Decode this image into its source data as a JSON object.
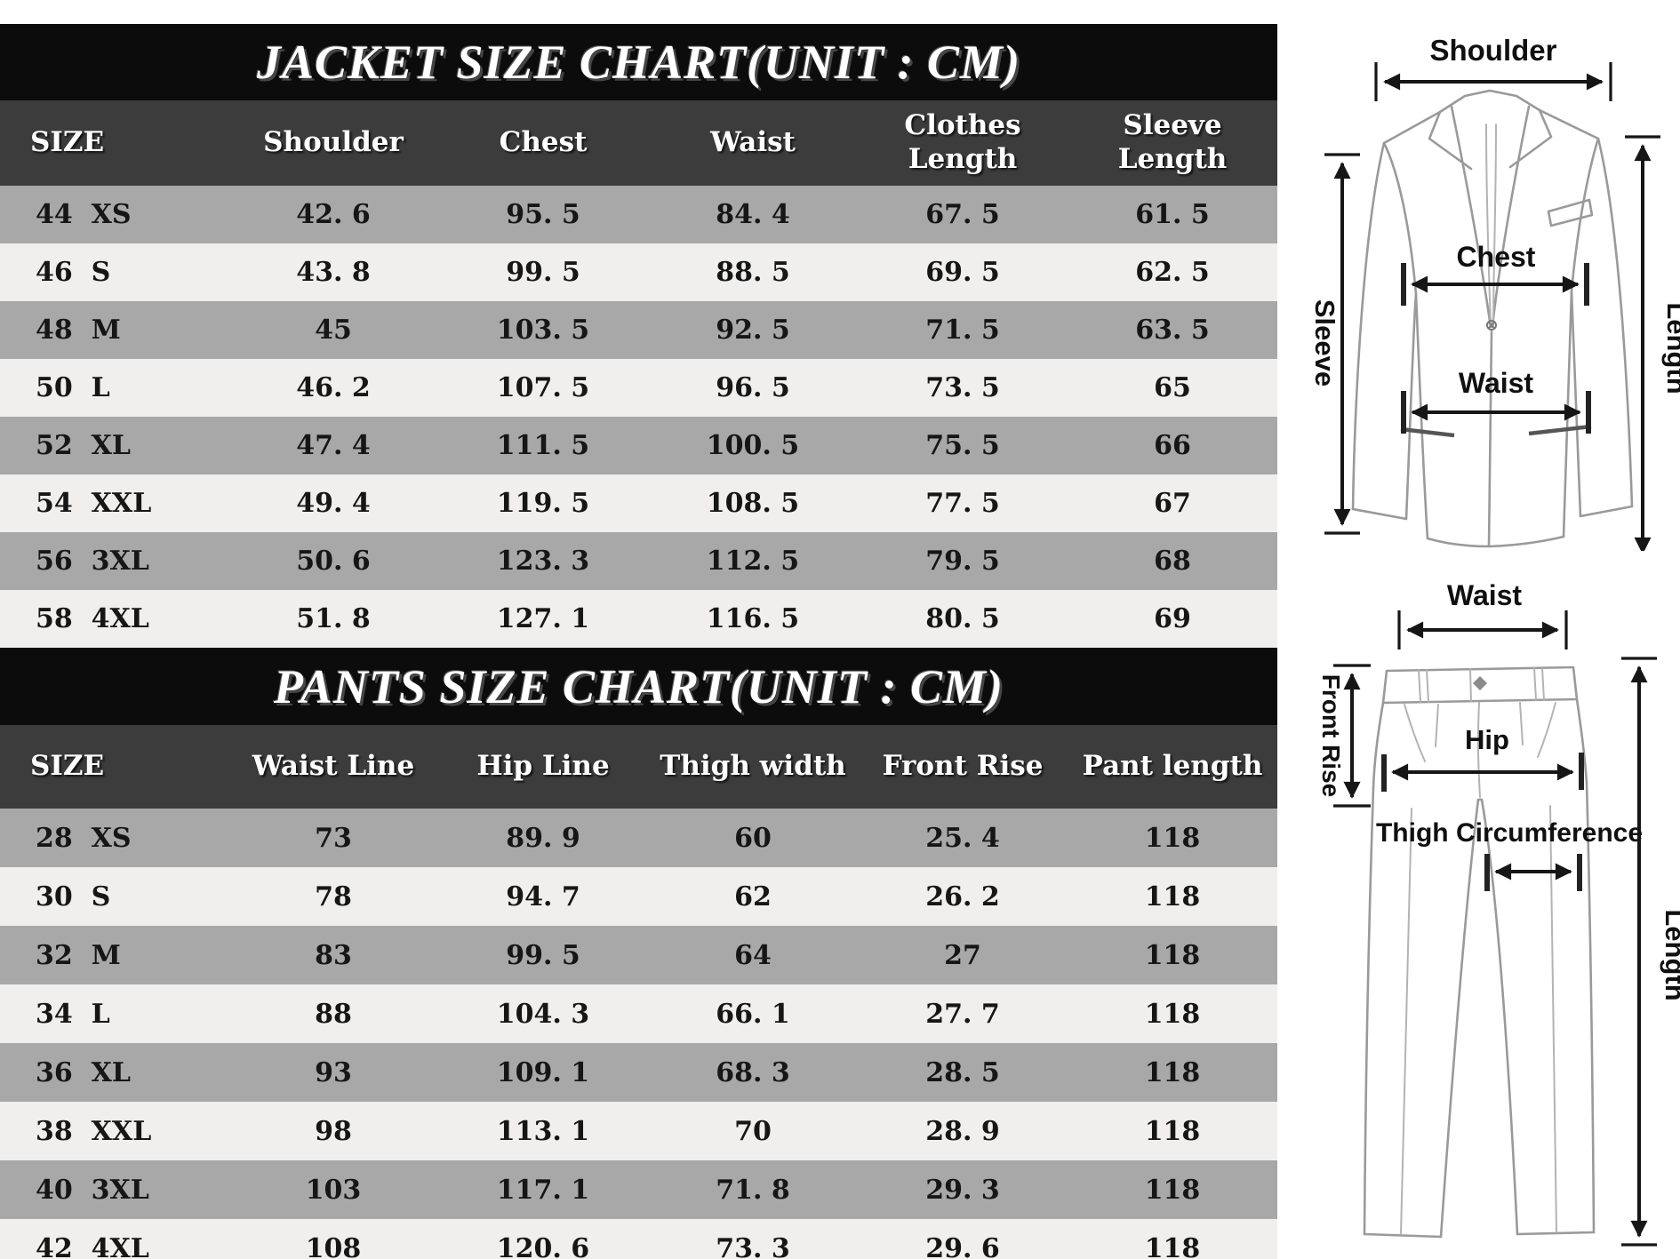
{
  "jacket_table": {
    "title": "JACKET SIZE CHART(UNIT : CM)",
    "headers": [
      "SIZE",
      "Shoulder",
      "Chest",
      "Waist",
      "Clothes\nLength",
      "Sleeve\nLength"
    ],
    "rows": [
      [
        "44  XS",
        "42. 6",
        "95. 5",
        "84. 4",
        "67. 5",
        "61. 5"
      ],
      [
        "46  S",
        "43. 8",
        "99. 5",
        "88. 5",
        "69. 5",
        "62. 5"
      ],
      [
        "48  M",
        "45",
        "103. 5",
        "92. 5",
        "71. 5",
        "63. 5"
      ],
      [
        "50  L",
        "46. 2",
        "107. 5",
        "96. 5",
        "73. 5",
        "65"
      ],
      [
        "52  XL",
        "47. 4",
        "111. 5",
        "100. 5",
        "75. 5",
        "66"
      ],
      [
        "54  XXL",
        "49. 4",
        "119. 5",
        "108. 5",
        "77. 5",
        "67"
      ],
      [
        "56  3XL",
        "50. 6",
        "123. 3",
        "112. 5",
        "79. 5",
        "68"
      ],
      [
        "58  4XL",
        "51. 8",
        "127. 1",
        "116. 5",
        "80. 5",
        "69"
      ]
    ]
  },
  "pants_table": {
    "title": "PANTS SIZE CHART(UNIT : CM)",
    "headers": [
      "SIZE",
      "Waist Line",
      "Hip Line",
      "Thigh width",
      "Front Rise",
      "Pant length"
    ],
    "rows": [
      [
        "28  XS",
        "73",
        "89. 9",
        "60",
        "25. 4",
        "118"
      ],
      [
        "30  S",
        "78",
        "94. 7",
        "62",
        "26. 2",
        "118"
      ],
      [
        "32  M",
        "83",
        "99. 5",
        "64",
        "27",
        "118"
      ],
      [
        "34  L",
        "88",
        "104. 3",
        "66. 1",
        "27. 7",
        "118"
      ],
      [
        "36  XL",
        "93",
        "109. 1",
        "68. 3",
        "28. 5",
        "118"
      ],
      [
        "38  XXL",
        "98",
        "113. 1",
        "70",
        "28. 9",
        "118"
      ],
      [
        "40  3XL",
        "103",
        "117. 1",
        "71. 8",
        "29. 3",
        "118"
      ],
      [
        "42  4XL",
        "108",
        "120. 6",
        "73. 3",
        "29. 6",
        "118"
      ]
    ]
  },
  "jacket_diagram": {
    "labels": {
      "shoulder": "Shoulder",
      "sleeve": "Sleeve",
      "length": "Length",
      "chest": "Chest",
      "waist": "Waist"
    }
  },
  "pants_diagram": {
    "labels": {
      "waist": "Waist",
      "front_rise": "Front Rise",
      "hip": "Hip",
      "thigh": "Thigh Circumference",
      "length": "Length"
    }
  },
  "colors": {
    "title_bar_bg": "#0c0c0c",
    "header_row_bg": "#3c3c3c",
    "row_gray": "#a8a8a8",
    "row_light": "#f0efee",
    "text_dark": "#161616",
    "text_light": "#ffffff"
  }
}
